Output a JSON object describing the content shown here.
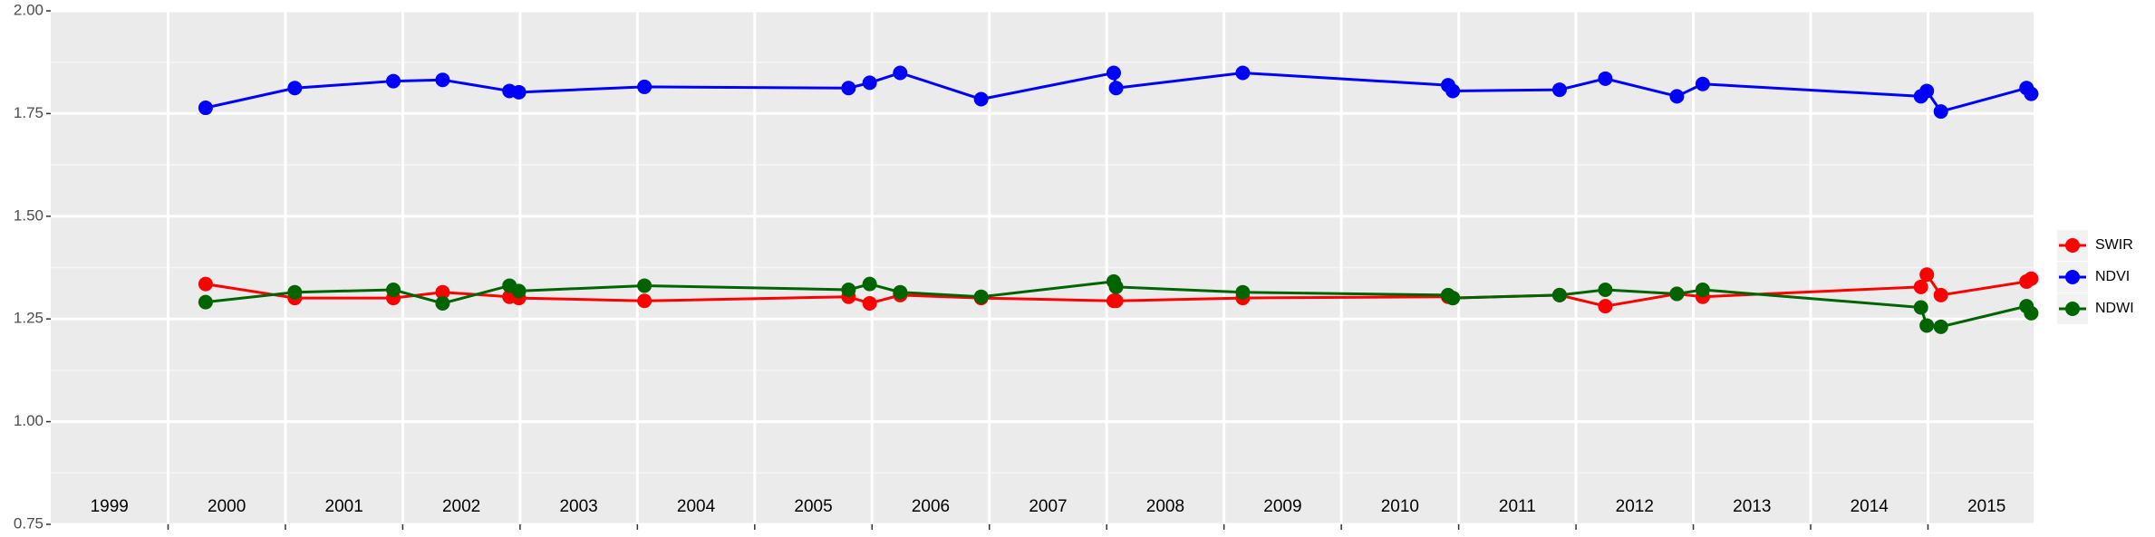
{
  "chart_data": {
    "type": "line",
    "xlim": [
      1999.0,
      2015.9
    ],
    "xticks": [
      2000,
      2001,
      2002,
      2003,
      2004,
      2005,
      2006,
      2007,
      2008,
      2009,
      2010,
      2011,
      2012,
      2013,
      2014,
      2015
    ],
    "year_labels": [
      "1999",
      "2000",
      "2001",
      "2002",
      "2003",
      "2004",
      "2005",
      "2006",
      "2007",
      "2008",
      "2009",
      "2010",
      "2011",
      "2012",
      "2013",
      "2014",
      "2015"
    ],
    "ylim": [
      0.75,
      2.0
    ],
    "yticks": [
      {
        "value": 0.75,
        "label": "0.75"
      },
      {
        "value": 1.0,
        "label": "1.00"
      },
      {
        "value": 1.25,
        "label": "1.25"
      },
      {
        "value": 1.5,
        "label": "1.50"
      },
      {
        "value": 1.75,
        "label": "1.75"
      },
      {
        "value": 2.0,
        "label": "2.00"
      }
    ],
    "grid": true,
    "legend": "right",
    "x": [
      2000.32,
      2001.08,
      2001.92,
      2002.34,
      2002.91,
      2002.99,
      2004.06,
      2005.8,
      2005.98,
      2006.24,
      2006.93,
      2008.06,
      2008.08,
      2009.16,
      2010.91,
      2010.95,
      2011.86,
      2012.25,
      2012.86,
      2013.08,
      2014.94,
      2014.99,
      2015.11,
      2015.84,
      2015.88
    ],
    "series": [
      {
        "name": "SWIR",
        "color": "#ff0000",
        "values": [
          1.335,
          1.301,
          1.301,
          1.315,
          1.304,
          1.301,
          1.294,
          1.304,
          1.288,
          1.308,
          1.301,
          1.294,
          1.294,
          1.301,
          1.304,
          1.301,
          1.308,
          1.281,
          1.311,
          1.304,
          1.328,
          1.358,
          1.308,
          1.341,
          1.348
        ]
      },
      {
        "name": "NDVI",
        "color": "#0000ff",
        "values": [
          1.764,
          1.812,
          1.829,
          1.832,
          1.805,
          1.802,
          1.815,
          1.812,
          1.825,
          1.849,
          1.785,
          1.849,
          1.812,
          1.849,
          1.819,
          1.805,
          1.808,
          1.835,
          1.792,
          1.822,
          1.792,
          1.805,
          1.755,
          1.812,
          1.798
        ]
      },
      {
        "name": "NDWI",
        "color": "#006400",
        "values": [
          1.291,
          1.315,
          1.321,
          1.288,
          1.331,
          1.318,
          1.331,
          1.321,
          1.335,
          1.315,
          1.304,
          1.341,
          1.328,
          1.315,
          1.308,
          1.301,
          1.308,
          1.321,
          1.311,
          1.321,
          1.278,
          1.234,
          1.231,
          1.281,
          1.264
        ]
      }
    ]
  }
}
